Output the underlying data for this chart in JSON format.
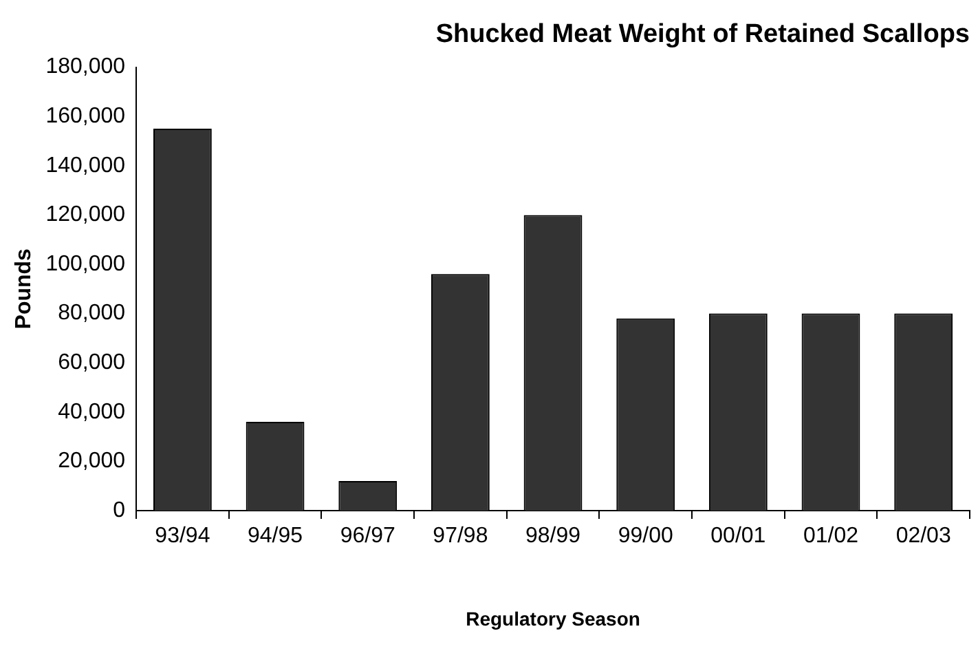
{
  "chart_data": {
    "type": "bar",
    "title": "Shucked Meat Weight of Retained Scallops",
    "xlabel": "Regulatory Season",
    "ylabel": "Pounds",
    "categories": [
      "93/94",
      "94/95",
      "96/97",
      "97/98",
      "98/99",
      "99/00",
      "00/01",
      "01/02",
      "02/03"
    ],
    "values": [
      155000,
      36000,
      12000,
      96000,
      120000,
      78000,
      80000,
      80000,
      80000
    ],
    "color": "#333333",
    "ylim": [
      0,
      180000
    ],
    "yticks": [
      0,
      {
        "value": 20000,
        "label": "20,000"
      },
      {
        "value": 40000,
        "label": "40,000"
      },
      {
        "value": 60000,
        "label": "60,000"
      },
      {
        "value": 80000,
        "label": "80,000"
      },
      {
        "value": 100000,
        "label": "100,000"
      },
      {
        "value": 120000,
        "label": "120,000"
      },
      {
        "value": 140000,
        "label": "140,000"
      },
      {
        "value": 160000,
        "label": "160,000"
      },
      {
        "value": 180000,
        "label": "180,000"
      }
    ],
    "grid": false,
    "legend": false
  }
}
